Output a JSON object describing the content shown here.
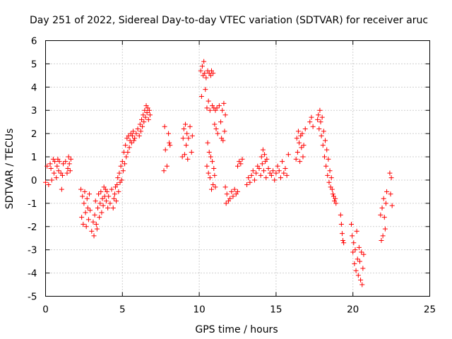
{
  "chart_data": {
    "type": "scatter",
    "title": "Day 251 of 2022, Sidereal Day-to-day VTEC variation (SDTVAR) for receiver aruc",
    "xlabel": "GPS time / hours",
    "ylabel": "SDTVAR / TECUs",
    "xlim": [
      0,
      25
    ],
    "ylim": [
      -5,
      6
    ],
    "xticks": [
      0,
      5,
      10,
      15,
      20,
      25
    ],
    "yticks": [
      -5,
      -4,
      -3,
      -2,
      -1,
      0,
      1,
      2,
      3,
      4,
      5,
      6
    ],
    "grid": true,
    "marker": "+",
    "marker_color": "#ff0000",
    "series": [
      {
        "name": "SDTVAR",
        "x": [
          0.0,
          0.1,
          0.2,
          0.3,
          0.35,
          0.4,
          0.5,
          0.55,
          0.6,
          0.7,
          0.75,
          0.8,
          0.85,
          0.9,
          1.0,
          1.05,
          1.1,
          1.15,
          1.3,
          1.4,
          1.45,
          1.5,
          1.55,
          1.6,
          1.65,
          2.3,
          2.35,
          2.4,
          2.45,
          2.5,
          2.55,
          2.6,
          2.65,
          2.7,
          2.75,
          2.8,
          2.85,
          2.9,
          3.0,
          3.1,
          3.15,
          3.2,
          3.25,
          3.3,
          3.35,
          3.4,
          3.45,
          3.5,
          3.55,
          3.6,
          3.65,
          3.7,
          3.75,
          3.8,
          3.85,
          3.9,
          3.95,
          4.0,
          4.05,
          4.1,
          4.2,
          4.3,
          4.4,
          4.45,
          4.5,
          4.55,
          4.6,
          4.65,
          4.7,
          4.75,
          4.8,
          4.85,
          4.9,
          4.95,
          5.0,
          5.05,
          5.1,
          5.15,
          5.2,
          5.25,
          5.3,
          5.35,
          5.4,
          5.45,
          5.5,
          5.55,
          5.6,
          5.65,
          5.7,
          5.75,
          5.8,
          5.9,
          6.0,
          6.1,
          6.15,
          6.2,
          6.25,
          6.3,
          6.35,
          6.4,
          6.45,
          6.5,
          6.55,
          6.6,
          6.65,
          6.7,
          6.75,
          6.8,
          7.7,
          7.75,
          7.8,
          7.9,
          8.0,
          8.05,
          8.1,
          8.9,
          8.95,
          9.0,
          9.05,
          9.1,
          9.15,
          9.2,
          9.25,
          9.3,
          9.4,
          9.5,
          9.55,
          10.1,
          10.15,
          10.2,
          10.25,
          10.3,
          10.35,
          10.4,
          10.45,
          10.5,
          10.55,
          10.6,
          10.65,
          10.7,
          10.75,
          10.8,
          10.85,
          10.9,
          10.95,
          11.0,
          11.05,
          11.1,
          11.15,
          11.2,
          11.3,
          11.4,
          11.45,
          11.5,
          11.55,
          11.6,
          11.65,
          11.7,
          10.5,
          10.55,
          10.6,
          10.65,
          10.7,
          10.75,
          10.8,
          10.85,
          10.9,
          10.95,
          11.0,
          11.05,
          11.7,
          11.75,
          11.8,
          11.9,
          12.0,
          12.1,
          12.2,
          12.3,
          12.4,
          12.5,
          12.5,
          12.6,
          12.7,
          12.8,
          13.1,
          13.2,
          13.3,
          13.4,
          13.5,
          13.6,
          13.7,
          13.8,
          13.9,
          14.0,
          14.05,
          14.1,
          14.15,
          14.2,
          14.25,
          14.3,
          14.35,
          14.4,
          14.5,
          14.6,
          14.7,
          14.8,
          14.9,
          15.0,
          15.1,
          15.2,
          15.3,
          15.4,
          15.5,
          15.6,
          15.7,
          15.8,
          16.3,
          16.35,
          16.4,
          16.45,
          16.5,
          16.55,
          16.6,
          16.65,
          16.7,
          16.75,
          16.8,
          16.9,
          17.2,
          17.3,
          17.4,
          17.7,
          17.75,
          17.8,
          17.85,
          17.9,
          17.95,
          18.0,
          18.05,
          18.1,
          18.15,
          18.2,
          18.25,
          18.3,
          18.35,
          18.4,
          18.45,
          18.5,
          18.55,
          18.6,
          18.65,
          18.7,
          18.75,
          18.8,
          18.85,
          18.9,
          19.2,
          19.25,
          19.3,
          19.35,
          19.4,
          19.9,
          19.95,
          20.0,
          20.05,
          20.1,
          20.15,
          20.2,
          20.25,
          20.3,
          20.35,
          20.4,
          20.45,
          20.5,
          20.55,
          20.6,
          20.65,
          20.7,
          21.8,
          21.85,
          21.9,
          21.95,
          22.0,
          22.05,
          22.1,
          22.15,
          22.2,
          22.4,
          22.45,
          22.5,
          22.55
        ],
        "y": [
          -0.1,
          0.6,
          -0.2,
          0.7,
          0.5,
          0.0,
          0.9,
          0.3,
          0.8,
          0.1,
          0.6,
          0.9,
          0.4,
          0.8,
          0.3,
          -0.4,
          0.2,
          0.7,
          0.8,
          0.3,
          0.5,
          1.0,
          0.7,
          0.4,
          0.9,
          -0.4,
          -1.6,
          -0.7,
          -1.9,
          -1.0,
          -0.5,
          -1.4,
          -2.0,
          -0.8,
          -1.2,
          -1.7,
          -0.6,
          -1.3,
          -2.2,
          -1.8,
          -2.4,
          -1.5,
          -0.9,
          -1.9,
          -2.1,
          -1.2,
          -0.6,
          -1.6,
          -1.0,
          -0.5,
          -1.4,
          -0.8,
          -1.1,
          -0.3,
          -0.7,
          -0.4,
          -0.9,
          -0.5,
          -1.2,
          -0.7,
          -1.0,
          -0.4,
          -1.2,
          -0.8,
          -0.6,
          -0.3,
          -0.9,
          -0.2,
          0.1,
          -0.5,
          0.3,
          -0.1,
          0.6,
          0.0,
          0.8,
          0.4,
          1.2,
          0.7,
          1.5,
          1.0,
          1.8,
          1.2,
          1.9,
          1.4,
          1.7,
          2.0,
          1.6,
          1.9,
          2.1,
          1.7,
          1.8,
          2.0,
          2.2,
          1.9,
          2.4,
          2.1,
          2.6,
          2.3,
          2.8,
          2.5,
          3.0,
          2.7,
          3.2,
          2.9,
          3.1,
          2.6,
          3.0,
          2.8,
          0.4,
          2.3,
          1.3,
          0.6,
          2.0,
          1.6,
          1.5,
          1.0,
          1.8,
          2.2,
          1.1,
          2.4,
          1.5,
          2.0,
          0.9,
          1.8,
          2.3,
          1.2,
          1.9,
          4.7,
          3.6,
          4.9,
          4.5,
          5.1,
          4.6,
          3.9,
          4.4,
          3.1,
          4.7,
          3.4,
          4.6,
          3.0,
          4.5,
          4.7,
          3.2,
          4.6,
          3.1,
          2.4,
          3.0,
          2.2,
          3.1,
          2.0,
          3.2,
          2.5,
          1.8,
          3.0,
          1.7,
          3.3,
          2.1,
          2.8,
          0.6,
          1.6,
          0.3,
          1.2,
          0.1,
          1.0,
          -0.4,
          0.8,
          -0.2,
          0.5,
          0.2,
          -0.3,
          -0.3,
          -1.0,
          -0.6,
          -0.9,
          -0.8,
          -0.5,
          -0.7,
          -0.4,
          -0.6,
          -0.5,
          0.6,
          0.8,
          0.7,
          0.9,
          -0.2,
          0.1,
          -0.1,
          0.2,
          0.4,
          0.0,
          0.3,
          0.6,
          0.5,
          0.2,
          1.0,
          0.7,
          1.3,
          0.4,
          1.1,
          0.8,
          0.1,
          0.9,
          0.5,
          0.3,
          0.2,
          0.4,
          0.0,
          0.3,
          0.6,
          0.4,
          0.1,
          0.8,
          0.3,
          0.5,
          0.2,
          1.1,
          0.9,
          1.8,
          1.2,
          2.1,
          1.6,
          0.8,
          1.9,
          1.4,
          2.0,
          1.0,
          1.5,
          2.2,
          2.5,
          2.7,
          2.3,
          2.6,
          2.8,
          2.2,
          3.0,
          2.5,
          1.9,
          2.7,
          1.5,
          2.1,
          1.0,
          1.7,
          0.6,
          1.3,
          0.2,
          0.9,
          -0.1,
          0.4,
          -0.3,
          0.1,
          -0.4,
          -0.6,
          -0.7,
          -0.9,
          -0.8,
          -1.0,
          -1.5,
          -1.9,
          -2.3,
          -2.6,
          -2.7,
          -1.9,
          -2.4,
          -3.1,
          -2.7,
          -3.6,
          -3.0,
          -3.9,
          -2.2,
          -3.4,
          -4.1,
          -2.9,
          -3.5,
          -4.3,
          -3.1,
          -4.5,
          -3.8,
          -3.2,
          -1.5,
          -2.6,
          -1.2,
          -2.4,
          -0.8,
          -1.6,
          -2.1,
          -1.0,
          -0.5,
          0.3,
          -0.6,
          0.1,
          -1.1
        ]
      }
    ]
  }
}
